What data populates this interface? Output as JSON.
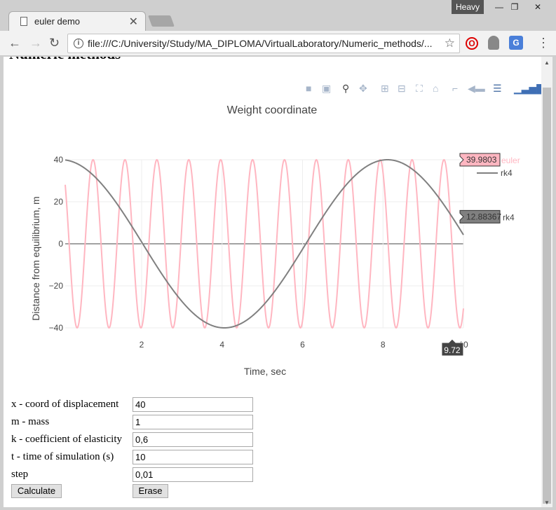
{
  "browser": {
    "tab_title": "euler demo",
    "tab_close": "✕",
    "profile": "Heavy",
    "minimize": "—",
    "maximize": "❐",
    "close": "✕",
    "url": "file:///C:/University/Study/MA_DIPLOMA/VirtualLaboratory/Numeric_methods/...",
    "back": "←",
    "forward": "→",
    "reload": "↻",
    "menu": "⋮",
    "bookmark": "☆"
  },
  "page": {
    "heading": "Numeric methods"
  },
  "chart_data": {
    "type": "line",
    "title": "Weight coordinate",
    "xlabel": "Time, sec",
    "ylabel": "Distance from equilibrium, m",
    "xlim": [
      0,
      10
    ],
    "ylim": [
      -40,
      40
    ],
    "x_ticks": [
      "2",
      "4",
      "6",
      "8",
      "10"
    ],
    "y_ticks": [
      "40",
      "20",
      "0",
      "−20",
      "−40"
    ],
    "legend_position": "top-right",
    "series": [
      {
        "name": "euler",
        "color": "#ffb6c1",
        "amplitude": 40,
        "period": 0.793,
        "phase": 0
      },
      {
        "name": "rk4",
        "color": "#808080",
        "amplitude": 40,
        "period": 8.11,
        "phase": 0
      }
    ],
    "hover": {
      "x": "9.72",
      "euler_value": "39.9803",
      "rk4_value": "12.88367",
      "rk4_label": "rk4",
      "euler_label": "euler"
    }
  },
  "form": {
    "fields": [
      {
        "label": "x - coord of displacement",
        "value": "40"
      },
      {
        "label": "m - mass",
        "value": "1"
      },
      {
        "label": "k - coefficient of elasticity",
        "value": "0,6"
      },
      {
        "label": "t - time of simulation (s)",
        "value": "10"
      },
      {
        "label": "step",
        "value": "0,01"
      }
    ],
    "calculate_label": "Calculate",
    "erase_label": "Erase"
  }
}
